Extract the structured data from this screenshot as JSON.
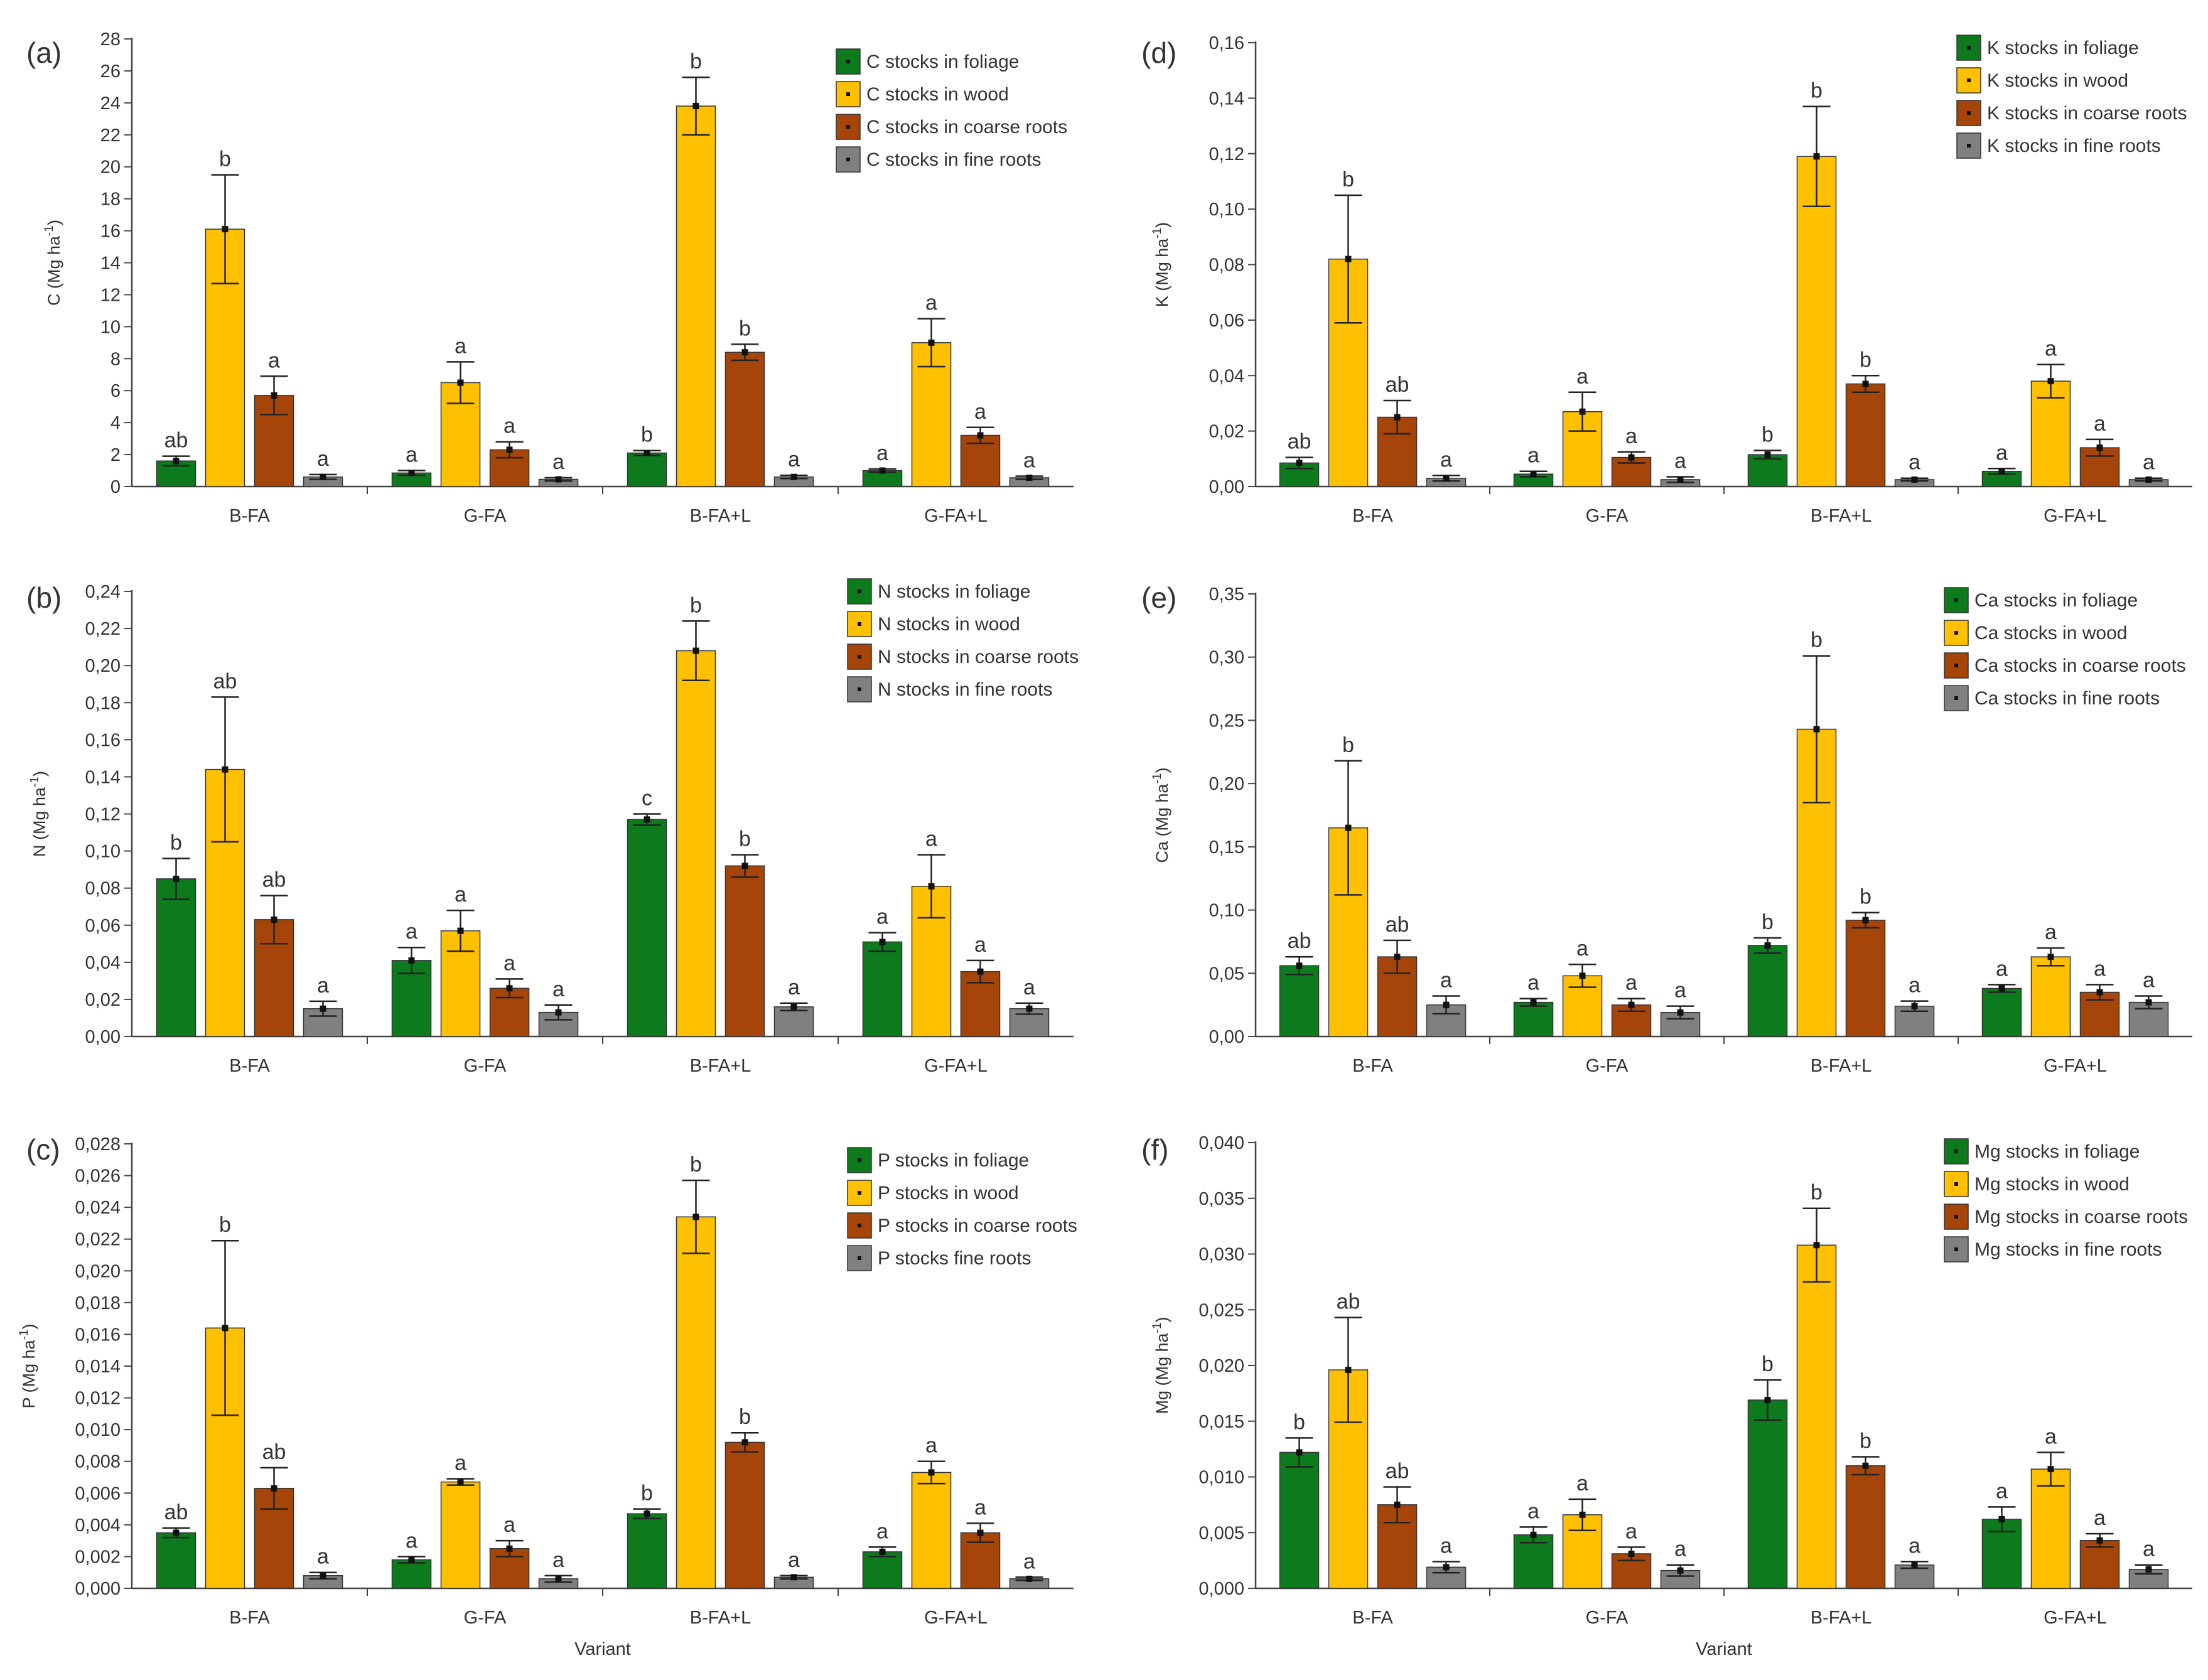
{
  "categories": [
    "B-FA",
    "G-FA",
    "B-FA+L",
    "G-FA+L"
  ],
  "x_axis_title": "Variant",
  "series_colors": [
    "#0e7a1e",
    "#ffc000",
    "#a5450a",
    "#808080"
  ],
  "chart_data": [
    {
      "type": "bar",
      "panel": "(a)",
      "ylabel": "C (Mg ha-1)",
      "ylabel_main": "C (Mg ha",
      "ylabel_sup": "-1",
      "ylabel_end": ")",
      "ylim": [
        0,
        28
      ],
      "yticks": [
        "0",
        "2",
        "4",
        "6",
        "8",
        "10",
        "12",
        "14",
        "16",
        "18",
        "20",
        "22",
        "24",
        "26",
        "28"
      ],
      "xlabel": "",
      "categories": [
        "B-FA",
        "G-FA",
        "B-FA+L",
        "G-FA+L"
      ],
      "series": [
        {
          "name": "C stocks in foliage",
          "values": [
            1.6,
            0.85,
            2.1,
            1.0
          ],
          "errors": [
            0.3,
            0.15,
            0.15,
            0.1
          ],
          "letters": [
            "ab",
            "a",
            "b",
            "a"
          ]
        },
        {
          "name": "C stocks in wood",
          "values": [
            16.1,
            6.5,
            23.8,
            9.0
          ],
          "errors": [
            3.4,
            1.3,
            1.8,
            1.5
          ],
          "letters": [
            "b",
            "a",
            "b",
            "a"
          ]
        },
        {
          "name": "C stocks in coarse roots",
          "values": [
            5.7,
            2.3,
            8.4,
            3.2
          ],
          "errors": [
            1.2,
            0.5,
            0.5,
            0.5
          ],
          "letters": [
            "a",
            "a",
            "b",
            "a"
          ]
        },
        {
          "name": "C stocks in fine roots",
          "values": [
            0.6,
            0.45,
            0.6,
            0.55
          ],
          "errors": [
            0.15,
            0.1,
            0.1,
            0.1
          ],
          "letters": [
            "a",
            "a",
            "a",
            "a"
          ]
        }
      ]
    },
    {
      "type": "bar",
      "panel": "(b)",
      "ylabel": "N (Mg ha-1)",
      "ylabel_main": "N (Mg ha",
      "ylabel_sup": "-1",
      "ylabel_end": ")",
      "ylim": [
        0,
        0.24
      ],
      "yticks": [
        "0,00",
        "0,02",
        "0,04",
        "0,06",
        "0,08",
        "0,10",
        "0,12",
        "0,14",
        "0,16",
        "0,18",
        "0,20",
        "0,22",
        "0,24"
      ],
      "xlabel": "",
      "categories": [
        "B-FA",
        "G-FA",
        "B-FA+L",
        "G-FA+L"
      ],
      "series": [
        {
          "name": "N stocks in foliage",
          "values": [
            0.085,
            0.041,
            0.117,
            0.051
          ],
          "errors": [
            0.011,
            0.007,
            0.003,
            0.005
          ],
          "letters": [
            "b",
            "a",
            "c",
            "a"
          ]
        },
        {
          "name": "N stocks in wood",
          "values": [
            0.144,
            0.057,
            0.208,
            0.081
          ],
          "errors": [
            0.039,
            0.011,
            0.016,
            0.017
          ],
          "letters": [
            "ab",
            "a",
            "b",
            "a"
          ]
        },
        {
          "name": "N stocks in coarse roots",
          "values": [
            0.063,
            0.026,
            0.092,
            0.035
          ],
          "errors": [
            0.013,
            0.005,
            0.006,
            0.006
          ],
          "letters": [
            "ab",
            "a",
            "b",
            "a"
          ]
        },
        {
          "name": "N stocks in fine roots",
          "values": [
            0.015,
            0.013,
            0.016,
            0.015
          ],
          "errors": [
            0.004,
            0.004,
            0.002,
            0.003
          ],
          "letters": [
            "a",
            "a",
            "a",
            "a"
          ]
        }
      ]
    },
    {
      "type": "bar",
      "panel": "(c)",
      "ylabel": "P (Mg ha-1)",
      "ylabel_main": "P (Mg ha",
      "ylabel_sup": "-1",
      "ylabel_end": ")",
      "ylim": [
        0,
        0.028
      ],
      "yticks": [
        "0,000",
        "0,002",
        "0,004",
        "0,006",
        "0,008",
        "0,010",
        "0,012",
        "0,014",
        "0,016",
        "0,018",
        "0,020",
        "0,022",
        "0,024",
        "0,026",
        "0,028"
      ],
      "xlabel": "Variant",
      "categories": [
        "B-FA",
        "G-FA",
        "B-FA+L",
        "G-FA+L"
      ],
      "series": [
        {
          "name": "P stocks in foliage",
          "values": [
            0.0035,
            0.0018,
            0.0047,
            0.0023
          ],
          "errors": [
            0.0003,
            0.0002,
            0.0003,
            0.0003
          ],
          "letters": [
            "ab",
            "a",
            "b",
            "a"
          ]
        },
        {
          "name": "P stocks in wood",
          "values": [
            0.0164,
            0.0067,
            0.0234,
            0.0073
          ],
          "errors": [
            0.0055,
            0.0002,
            0.0023,
            0.0007
          ],
          "letters": [
            "b",
            "a",
            "b",
            "a"
          ]
        },
        {
          "name": "P stocks in coarse roots",
          "values": [
            0.0063,
            0.0025,
            0.0092,
            0.0035
          ],
          "errors": [
            0.0013,
            0.0005,
            0.0006,
            0.0006
          ],
          "letters": [
            "ab",
            "a",
            "b",
            "a"
          ]
        },
        {
          "name": "P stocks fine roots",
          "values": [
            0.0008,
            0.0006,
            0.0007,
            0.0006
          ],
          "errors": [
            0.0002,
            0.0002,
            0.0001,
            0.0001
          ],
          "letters": [
            "a",
            "a",
            "a",
            "a"
          ]
        }
      ]
    },
    {
      "type": "bar",
      "panel": "(d)",
      "ylabel": "K (Mg ha-1)",
      "ylabel_main": "K (Mg ha",
      "ylabel_sup": "-1",
      "ylabel_end": ")",
      "ylim": [
        0,
        0.16
      ],
      "yticks": [
        "0,00",
        "0,02",
        "0,04",
        "0,06",
        "0,08",
        "0,10",
        "0,12",
        "0,14",
        "0,16"
      ],
      "xlabel": "",
      "categories": [
        "B-FA",
        "G-FA",
        "B-FA+L",
        "G-FA+L"
      ],
      "series": [
        {
          "name": "K stocks in foliage",
          "values": [
            0.0085,
            0.0045,
            0.0115,
            0.0055
          ],
          "errors": [
            0.002,
            0.001,
            0.0015,
            0.001
          ],
          "letters": [
            "ab",
            "a",
            "b",
            "a"
          ]
        },
        {
          "name": "K stocks in wood",
          "values": [
            0.082,
            0.027,
            0.119,
            0.038
          ],
          "errors": [
            0.023,
            0.007,
            0.018,
            0.006
          ],
          "letters": [
            "b",
            "a",
            "b",
            "a"
          ]
        },
        {
          "name": "K stocks in coarse roots",
          "values": [
            0.025,
            0.0105,
            0.037,
            0.014
          ],
          "errors": [
            0.006,
            0.002,
            0.003,
            0.003
          ],
          "letters": [
            "ab",
            "a",
            "b",
            "a"
          ]
        },
        {
          "name": "K stocks in fine roots",
          "values": [
            0.003,
            0.0025,
            0.0025,
            0.0025
          ],
          "errors": [
            0.001,
            0.001,
            0.0005,
            0.0005
          ],
          "letters": [
            "a",
            "a",
            "a",
            "a"
          ]
        }
      ]
    },
    {
      "type": "bar",
      "panel": "(e)",
      "ylabel": "Ca (Mg ha-1)",
      "ylabel_main": "Ca (Mg ha",
      "ylabel_sup": "-1",
      "ylabel_end": ")",
      "ylim": [
        0,
        0.35
      ],
      "yticks": [
        "0,00",
        "0,05",
        "0,10",
        "0,15",
        "0,20",
        "0,25",
        "0,30",
        "0,35"
      ],
      "xlabel": "",
      "categories": [
        "B-FA",
        "G-FA",
        "B-FA+L",
        "G-FA+L"
      ],
      "series": [
        {
          "name": "Ca stocks in foliage",
          "values": [
            0.056,
            0.027,
            0.072,
            0.038
          ],
          "errors": [
            0.007,
            0.003,
            0.006,
            0.003
          ],
          "letters": [
            "ab",
            "a",
            "b",
            "a"
          ]
        },
        {
          "name": "Ca stocks in wood",
          "values": [
            0.165,
            0.048,
            0.243,
            0.063
          ],
          "errors": [
            0.053,
            0.009,
            0.058,
            0.007
          ],
          "letters": [
            "b",
            "a",
            "b",
            "a"
          ]
        },
        {
          "name": "Ca stocks in coarse roots",
          "values": [
            0.063,
            0.025,
            0.092,
            0.035
          ],
          "errors": [
            0.013,
            0.005,
            0.006,
            0.006
          ],
          "letters": [
            "ab",
            "a",
            "b",
            "a"
          ]
        },
        {
          "name": "Ca stocks in fine roots",
          "values": [
            0.025,
            0.019,
            0.024,
            0.027
          ],
          "errors": [
            0.007,
            0.005,
            0.004,
            0.005
          ],
          "letters": [
            "a",
            "a",
            "a",
            "a"
          ]
        }
      ]
    },
    {
      "type": "bar",
      "panel": "(f)",
      "ylabel": "Mg (Mg ha-1)",
      "ylabel_main": "Mg (Mg ha",
      "ylabel_sup": "-1",
      "ylabel_end": ")",
      "ylim": [
        0,
        0.04
      ],
      "yticks": [
        "0,000",
        "0,005",
        "0,010",
        "0,015",
        "0,020",
        "0,025",
        "0,030",
        "0,035",
        "0,040"
      ],
      "xlabel": "Variant",
      "categories": [
        "B-FA",
        "G-FA",
        "B-FA+L",
        "G-FA+L"
      ],
      "series": [
        {
          "name": "Mg stocks in foliage",
          "values": [
            0.0122,
            0.0048,
            0.0169,
            0.0062
          ],
          "errors": [
            0.0013,
            0.0007,
            0.0018,
            0.0011
          ],
          "letters": [
            "b",
            "a",
            "b",
            "a"
          ]
        },
        {
          "name": "Mg stocks in wood",
          "values": [
            0.0196,
            0.0066,
            0.0308,
            0.0107
          ],
          "errors": [
            0.0047,
            0.0014,
            0.0033,
            0.0015
          ],
          "letters": [
            "ab",
            "a",
            "b",
            "a"
          ]
        },
        {
          "name": "Mg stocks in coarse roots",
          "values": [
            0.0075,
            0.0031,
            0.011,
            0.0043
          ],
          "errors": [
            0.0016,
            0.0006,
            0.0008,
            0.0006
          ],
          "letters": [
            "ab",
            "a",
            "b",
            "a"
          ]
        },
        {
          "name": "Mg stocks in fine roots",
          "values": [
            0.0019,
            0.0016,
            0.0021,
            0.0017
          ],
          "errors": [
            0.0005,
            0.0005,
            0.0003,
            0.0004
          ],
          "letters": [
            "a",
            "a",
            "a",
            "a"
          ]
        }
      ]
    }
  ]
}
